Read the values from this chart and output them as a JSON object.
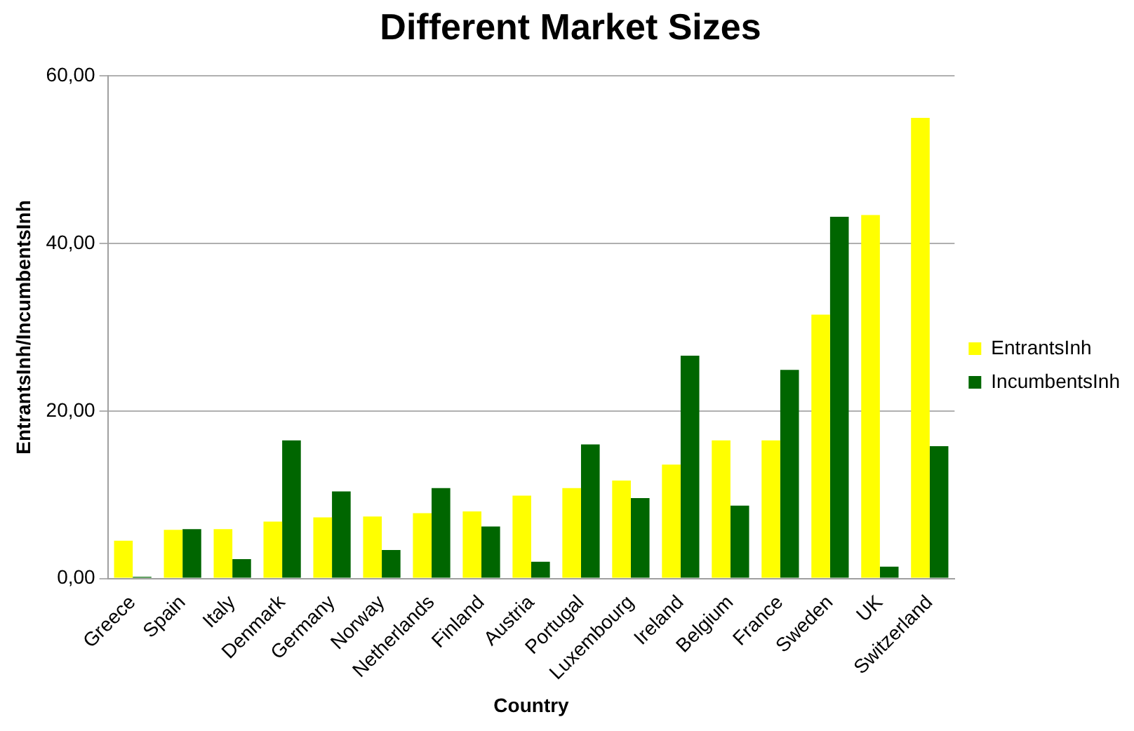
{
  "chart_data": {
    "type": "bar",
    "title": "Different Market Sizes",
    "xlabel": "Country",
    "ylabel": "EntrantsInh/IncumbentsInh",
    "categories": [
      "Greece",
      "Spain",
      "Italy",
      "Denmark",
      "Germany",
      "Norway",
      "Netherlands",
      "Finland",
      "Austria",
      "Portugal",
      "Luxembourg",
      "Ireland",
      "Belgium",
      "France",
      "Sweden",
      "UK",
      "Switzerland"
    ],
    "series": [
      {
        "name": "EntrantsInh",
        "color": "#ffff00",
        "values": [
          4.5,
          5.8,
          5.9,
          6.8,
          7.3,
          7.4,
          7.8,
          8.0,
          9.9,
          10.8,
          11.7,
          13.6,
          16.5,
          16.5,
          31.5,
          43.4,
          55.0
        ]
      },
      {
        "name": "IncumbentsInh",
        "color": "#006600",
        "values": [
          0.2,
          5.9,
          2.3,
          16.5,
          10.4,
          3.4,
          10.8,
          6.2,
          2.0,
          16.0,
          9.6,
          26.6,
          8.7,
          24.9,
          43.2,
          1.4,
          15.8
        ]
      }
    ],
    "ylim": [
      0,
      60
    ],
    "yticks": [
      {
        "value": 0,
        "label": "0,00"
      },
      {
        "value": 20,
        "label": "20,00"
      },
      {
        "value": 40,
        "label": "40,00"
      },
      {
        "value": 60,
        "label": "60,00"
      }
    ],
    "grid": "y",
    "legend": "right"
  }
}
